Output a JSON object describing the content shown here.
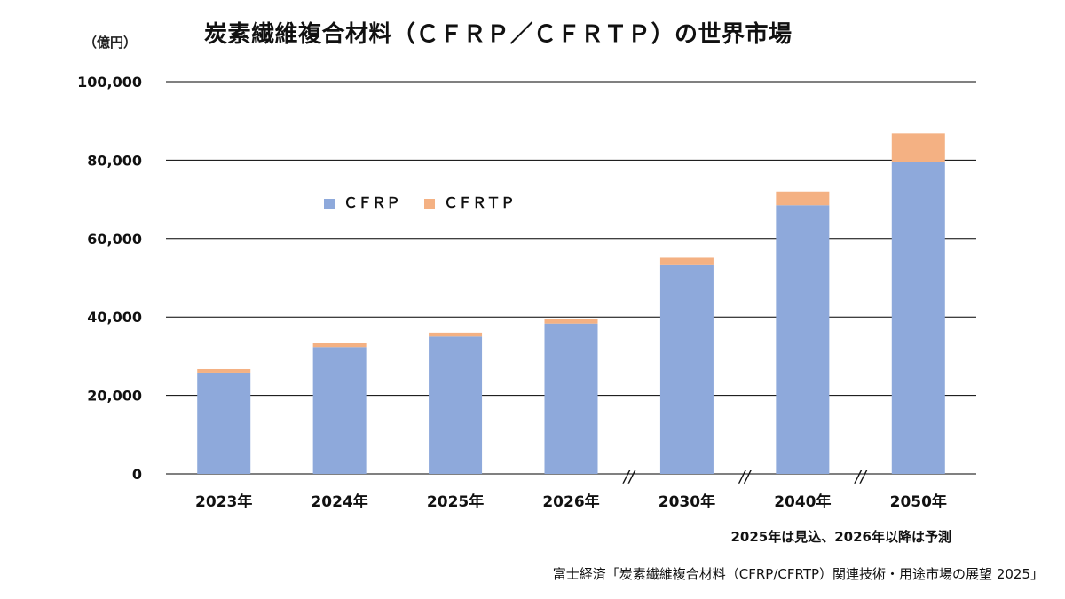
{
  "chart_data": {
    "type": "bar",
    "stacked": true,
    "title": "炭素繊維複合材料（ＣＦＲＰ／ＣＦＲＴＰ）の世界市場",
    "ylabel": "（億円）",
    "categories": [
      "2023年",
      "2024年",
      "2025年",
      "2026年",
      "2030年",
      "2040年",
      "2050年"
    ],
    "series": [
      {
        "name": "ＣＦＲＰ",
        "color": "#8EA9DB",
        "values": [
          25800,
          32300,
          35000,
          38300,
          53200,
          68500,
          79500
        ]
      },
      {
        "name": "ＣＦＲＴＰ",
        "color": "#F4B183",
        "values": [
          900,
          1000,
          1000,
          1100,
          1900,
          3500,
          7300
        ]
      }
    ],
    "ylim": [
      0,
      100000
    ],
    "yticks": [
      "0",
      "20,000",
      "40,000",
      "60,000",
      "80,000",
      "100,000"
    ],
    "grid": true,
    "legend_position": "upper-left inside plot",
    "break_marks": [
      "//",
      "//",
      "//"
    ],
    "note": "2025年は見込、2026年以降は予測",
    "source": "富士経済「炭素繊維複合材料（CFRP/CFRTP）関連技術・用途市場の展望 2025」"
  }
}
